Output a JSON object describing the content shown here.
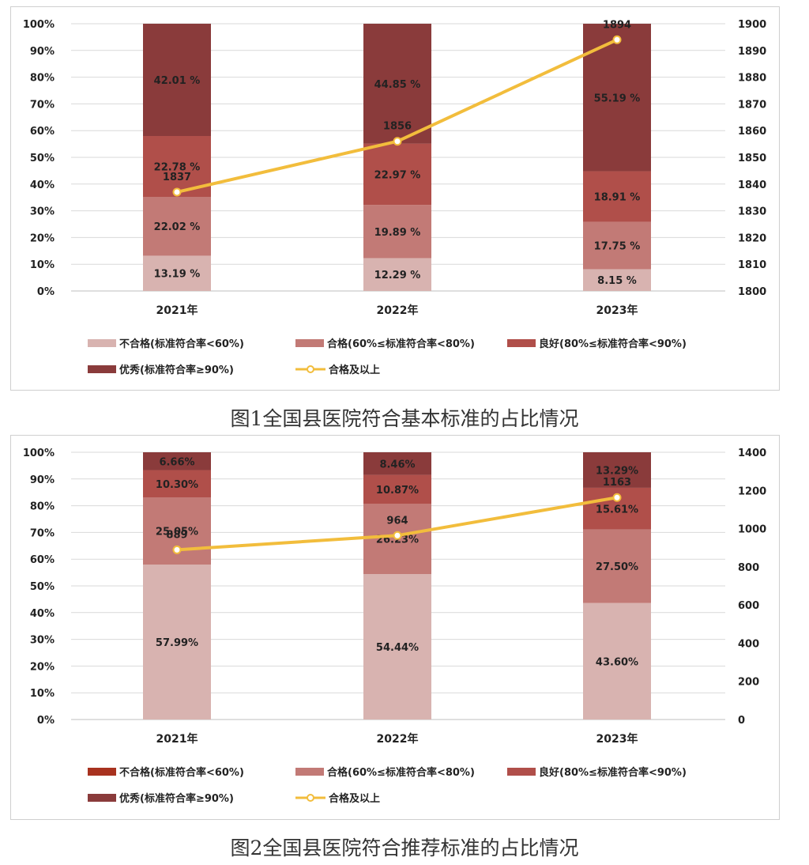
{
  "colors": {
    "fail": "#d8b3b0",
    "pass": "#c27a76",
    "good": "#b04f4a",
    "excellent": "#8a3b3b",
    "line": "#f2bd3c",
    "legend_fail_chart2": "#a8321f"
  },
  "chart_data": [
    {
      "type": "bar",
      "stacked": true,
      "categories": [
        "2021年",
        "2022年",
        "2023年"
      ],
      "series": [
        {
          "name": "不合格(标准符合率<60%)",
          "values": [
            13.19,
            12.29,
            8.15
          ],
          "labels": [
            "13.19 %",
            "12.29 %",
            "8.15 %"
          ]
        },
        {
          "name": "合格(60%≤标准符合率<80%)",
          "values": [
            22.02,
            19.89,
            17.75
          ],
          "labels": [
            "22.02 %",
            "19.89 %",
            "17.75 %"
          ]
        },
        {
          "name": "良好(80%≤标准符合率<90%)",
          "values": [
            22.78,
            22.97,
            18.91
          ],
          "labels": [
            "22.78 %",
            "22.97 %",
            "18.91 %"
          ]
        },
        {
          "name": "优秀(标准符合率≥90%)",
          "values": [
            42.01,
            44.85,
            55.19
          ],
          "labels": [
            "42.01 %",
            "44.85 %",
            "55.19 %"
          ]
        }
      ],
      "line": {
        "name": "合格及以上",
        "values": [
          1837,
          1856,
          1894
        ],
        "labels": [
          "1837",
          "1856",
          "1894"
        ]
      },
      "ylim": [
        0,
        100
      ],
      "y_ticks": [
        "0%",
        "10%",
        "20%",
        "30%",
        "40%",
        "50%",
        "60%",
        "70%",
        "80%",
        "90%",
        "100%"
      ],
      "y2lim": [
        1800,
        1900
      ],
      "y2_ticks": [
        "1800",
        "1810",
        "1820",
        "1830",
        "1840",
        "1850",
        "1860",
        "1870",
        "1880",
        "1890",
        "1900"
      ],
      "grid": true,
      "legend_position": "bottom",
      "caption": "图1全国县医院符合基本标准的占比情况"
    },
    {
      "type": "bar",
      "stacked": true,
      "categories": [
        "2021年",
        "2022年",
        "2023年"
      ],
      "series": [
        {
          "name": "不合格(标准符合率<60%)",
          "values": [
            57.99,
            54.44,
            43.6
          ],
          "labels": [
            "57.99%",
            "54.44%",
            "43.60%"
          ]
        },
        {
          "name": "合格(60%≤标准符合率<80%)",
          "values": [
            25.05,
            26.23,
            27.5
          ],
          "labels": [
            "25.05%",
            "26.23%",
            "27.50%"
          ]
        },
        {
          "name": "良好(80%≤标准符合率<90%)",
          "values": [
            10.3,
            10.87,
            15.61
          ],
          "labels": [
            "10.30%",
            "10.87%",
            "15.61%"
          ]
        },
        {
          "name": "优秀(标准符合率≥90%)",
          "values": [
            6.66,
            8.46,
            13.29
          ],
          "labels": [
            "6.66%",
            "8.46%",
            "13.29%"
          ]
        }
      ],
      "line": {
        "name": "合格及以上",
        "values": [
          889,
          964,
          1163
        ],
        "labels": [
          "889",
          "964",
          "1163"
        ]
      },
      "ylim": [
        0,
        100
      ],
      "y_ticks": [
        "0%",
        "10%",
        "20%",
        "30%",
        "40%",
        "50%",
        "60%",
        "70%",
        "80%",
        "90%",
        "100%"
      ],
      "y2lim": [
        0,
        1400
      ],
      "y2_ticks": [
        "0",
        "200",
        "400",
        "600",
        "800",
        "1000",
        "1200",
        "1400"
      ],
      "grid": true,
      "legend_position": "bottom",
      "caption": "图2全国县医院符合推荐标准的占比情况"
    }
  ]
}
